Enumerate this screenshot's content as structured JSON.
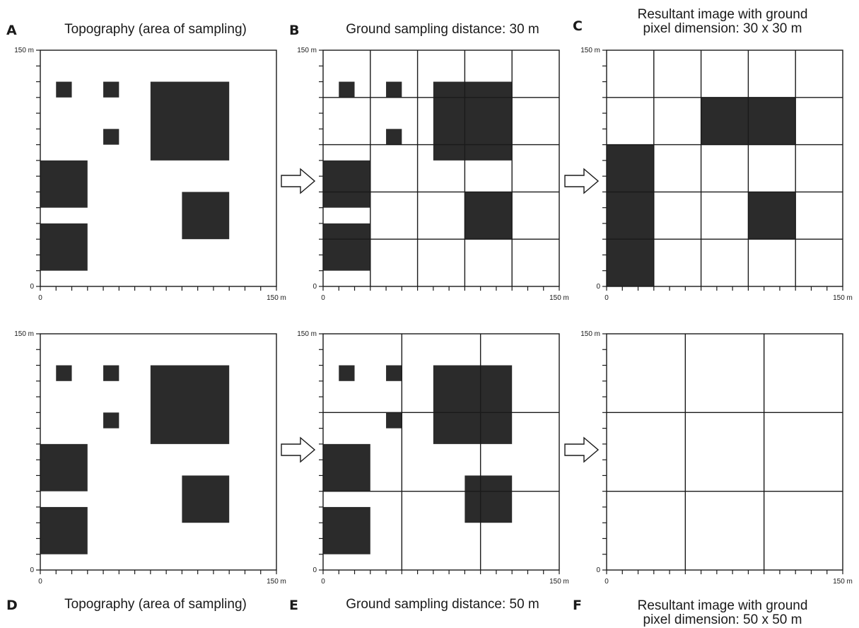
{
  "panels": [
    {
      "id": "A",
      "label": "A",
      "title": [
        "Topography (area of sampling)"
      ],
      "grid_m": 0,
      "mode": "topo"
    },
    {
      "id": "B",
      "label": "B",
      "title": [
        "Ground sampling distance: 30 m"
      ],
      "grid_m": 30,
      "mode": "topo"
    },
    {
      "id": "C",
      "label": "C",
      "title": [
        "Resultant image with ground",
        "pixel dimension: 30 x 30 m"
      ],
      "grid_m": 30,
      "mode": "result"
    },
    {
      "id": "D",
      "label": "D",
      "title": [
        "Topography (area of sampling)"
      ],
      "grid_m": 0,
      "mode": "topo"
    },
    {
      "id": "E",
      "label": "E",
      "title": [
        "Ground sampling distance: 50 m"
      ],
      "grid_m": 50,
      "mode": "topo"
    },
    {
      "id": "F",
      "label": "F",
      "title": [
        "Resultant image with ground",
        "pixel dimension: 50 x 50 m"
      ],
      "grid_m": 50,
      "mode": "result"
    }
  ],
  "axis": {
    "min_label": "0",
    "max_label": "150 m",
    "extent_m": 150,
    "minor_tick_m": 10
  },
  "topography_blocks_m": [
    {
      "x": 10,
      "y": 120,
      "w": 10,
      "h": 10
    },
    {
      "x": 40,
      "y": 120,
      "w": 10,
      "h": 10
    },
    {
      "x": 70,
      "y": 80,
      "w": 50,
      "h": 50
    },
    {
      "x": 40,
      "y": 90,
      "w": 10,
      "h": 10
    },
    {
      "x": 0,
      "y": 50,
      "w": 30,
      "h": 30
    },
    {
      "x": 0,
      "y": 10,
      "w": 30,
      "h": 30
    },
    {
      "x": 90,
      "y": 30,
      "w": 30,
      "h": 30
    }
  ],
  "result_filled_cells_m": {
    "C": [
      {
        "x": 0,
        "y": 0,
        "w": 30,
        "h": 90
      },
      {
        "x": 60,
        "y": 90,
        "w": 60,
        "h": 30
      },
      {
        "x": 90,
        "y": 30,
        "w": 30,
        "h": 30
      }
    ],
    "F": []
  },
  "colors": {
    "fill": "#2b2b2b",
    "line": "#1a1a1a",
    "background": "#ffffff"
  }
}
